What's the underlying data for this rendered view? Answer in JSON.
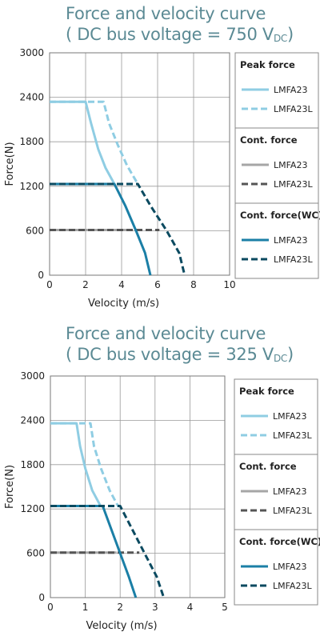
{
  "colors": {
    "light_blue": "#8fcde3",
    "grey": "#a6a6a6",
    "dark_grey": "#555555",
    "blue": "#1b7fa6",
    "dark_blue": "#0b4a60",
    "title": "#5b8a94",
    "grid": "#9a9a9a"
  },
  "chart_data": [
    {
      "type": "line",
      "title_line1": "Force and velocity curve",
      "title_line2_prefix": "( DC bus voltage = 750 V",
      "title_line2_sub": "DC",
      "title_line2_suffix": ")",
      "xlabel": "Velocity (m/s)",
      "ylabel": "Force(N)",
      "xlim": [
        0,
        10
      ],
      "ylim": [
        0,
        3000
      ],
      "xticks": [
        "0",
        "2",
        "4",
        "6",
        "8",
        "10"
      ],
      "yticks": [
        "0",
        "600",
        "1200",
        "1800",
        "2400",
        "3000"
      ],
      "grid": true,
      "legend_position": "right",
      "legend_groups": [
        {
          "heading": "Peak force",
          "entries": [
            {
              "name": "LMFA23",
              "color": "light_blue",
              "dashed": false
            },
            {
              "name": "LMFA23L",
              "color": "light_blue",
              "dashed": true
            }
          ]
        },
        {
          "heading": "Cont. force",
          "entries": [
            {
              "name": "LMFA23",
              "color": "grey",
              "dashed": false
            },
            {
              "name": "LMFA23L",
              "color": "dark_grey",
              "dashed": true
            }
          ]
        },
        {
          "heading": "Cont. force(WC)",
          "entries": [
            {
              "name": "LMFA23",
              "color": "blue",
              "dashed": false
            },
            {
              "name": "LMFA23L",
              "color": "dark_blue",
              "dashed": true
            }
          ]
        }
      ],
      "series": [
        {
          "group": "Peak force",
          "name": "LMFA23",
          "color": "light_blue",
          "dashed": false,
          "points": [
            [
              0,
              2340
            ],
            [
              2.0,
              2340
            ],
            [
              2.3,
              2050
            ],
            [
              2.7,
              1700
            ],
            [
              3.1,
              1450
            ],
            [
              3.6,
              1230
            ]
          ]
        },
        {
          "group": "Peak force",
          "name": "LMFA23L",
          "color": "light_blue",
          "dashed": true,
          "points": [
            [
              0,
              2340
            ],
            [
              3.0,
              2340
            ],
            [
              3.3,
              2050
            ],
            [
              3.8,
              1750
            ],
            [
              4.3,
              1480
            ],
            [
              4.9,
              1230
            ]
          ]
        },
        {
          "group": "Cont. force",
          "name": "LMFA23",
          "color": "grey",
          "dashed": false,
          "points": [
            [
              0,
              610
            ],
            [
              4.6,
              610
            ]
          ]
        },
        {
          "group": "Cont. force",
          "name": "LMFA23L",
          "color": "dark_grey",
          "dashed": true,
          "points": [
            [
              0,
              610
            ],
            [
              6.1,
              610
            ]
          ]
        },
        {
          "group": "Cont. force(WC)",
          "name": "LMFA23",
          "color": "blue",
          "dashed": false,
          "points": [
            [
              0,
              1230
            ],
            [
              3.6,
              1230
            ],
            [
              4.2,
              940
            ],
            [
              4.8,
              600
            ],
            [
              5.3,
              300
            ],
            [
              5.6,
              0
            ]
          ]
        },
        {
          "group": "Cont. force(WC)",
          "name": "LMFA23L",
          "color": "dark_blue",
          "dashed": true,
          "points": [
            [
              0,
              1230
            ],
            [
              4.9,
              1230
            ],
            [
              5.6,
              940
            ],
            [
              6.5,
              600
            ],
            [
              7.2,
              300
            ],
            [
              7.5,
              0
            ]
          ]
        }
      ]
    },
    {
      "type": "line",
      "title_line1": "Force and velocity curve",
      "title_line2_prefix": "( DC bus voltage = 325 V",
      "title_line2_sub": "DC",
      "title_line2_suffix": ")",
      "xlabel": "Velocity (m/s)",
      "ylabel": "Force(N)",
      "xlim": [
        0,
        5
      ],
      "ylim": [
        0,
        3000
      ],
      "xticks": [
        "0",
        "1",
        "2",
        "3",
        "4",
        "5"
      ],
      "yticks": [
        "0",
        "600",
        "1200",
        "1800",
        "2400",
        "3000"
      ],
      "grid": true,
      "legend_position": "right",
      "legend_groups": [
        {
          "heading": "Peak force",
          "entries": [
            {
              "name": "LMFA23",
              "color": "light_blue",
              "dashed": false
            },
            {
              "name": "LMFA23L",
              "color": "light_blue",
              "dashed": true
            }
          ]
        },
        {
          "heading": "Cont. force",
          "entries": [
            {
              "name": "LMFA23",
              "color": "grey",
              "dashed": false
            },
            {
              "name": "LMFA23L",
              "color": "dark_grey",
              "dashed": true
            }
          ]
        },
        {
          "heading": "Cont. force(WC)",
          "entries": [
            {
              "name": "LMFA23",
              "color": "blue",
              "dashed": false
            },
            {
              "name": "LMFA23L",
              "color": "dark_blue",
              "dashed": true
            }
          ]
        }
      ],
      "series": [
        {
          "group": "Peak force",
          "name": "LMFA23",
          "color": "light_blue",
          "dashed": false,
          "points": [
            [
              0,
              2360
            ],
            [
              0.75,
              2360
            ],
            [
              0.85,
              2050
            ],
            [
              1.0,
              1750
            ],
            [
              1.2,
              1450
            ],
            [
              1.45,
              1230
            ]
          ]
        },
        {
          "group": "Peak force",
          "name": "LMFA23L",
          "color": "light_blue",
          "dashed": true,
          "points": [
            [
              0,
              2360
            ],
            [
              1.15,
              2360
            ],
            [
              1.25,
              2050
            ],
            [
              1.45,
              1750
            ],
            [
              1.7,
              1450
            ],
            [
              1.95,
              1230
            ]
          ]
        },
        {
          "group": "Cont. force",
          "name": "LMFA23",
          "color": "grey",
          "dashed": false,
          "points": [
            [
              0,
              610
            ],
            [
              1.9,
              610
            ]
          ]
        },
        {
          "group": "Cont. force",
          "name": "LMFA23L",
          "color": "dark_grey",
          "dashed": true,
          "points": [
            [
              0,
              610
            ],
            [
              2.55,
              610
            ]
          ]
        },
        {
          "group": "Cont. force(WC)",
          "name": "LMFA23",
          "color": "blue",
          "dashed": false,
          "points": [
            [
              0,
              1240
            ],
            [
              1.5,
              1240
            ],
            [
              1.75,
              920
            ],
            [
              2.0,
              600
            ],
            [
              2.25,
              280
            ],
            [
              2.45,
              0
            ]
          ]
        },
        {
          "group": "Cont. force(WC)",
          "name": "LMFA23L",
          "color": "dark_blue",
          "dashed": true,
          "points": [
            [
              0,
              1240
            ],
            [
              2.0,
              1240
            ],
            [
              2.35,
              920
            ],
            [
              2.7,
              600
            ],
            [
              3.05,
              280
            ],
            [
              3.25,
              0
            ]
          ]
        }
      ]
    }
  ]
}
